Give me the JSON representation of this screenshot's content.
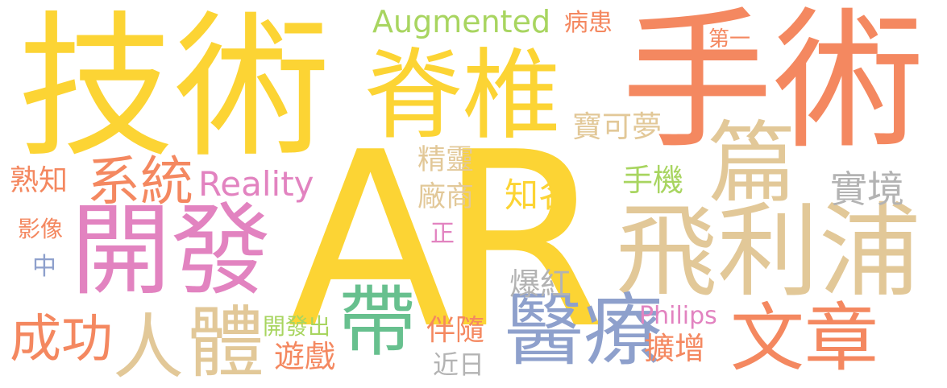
{
  "palette": {
    "yellow": "#fcd434",
    "orange": "#f48860",
    "tan": "#e2c898",
    "pink": "#e283c0",
    "blue": "#8ea0cc",
    "green": "#67c08e",
    "lime": "#a8d560",
    "gray": "#b3b3b3"
  },
  "words": [
    {
      "text": "AR",
      "color": "yellow"
    },
    {
      "text": "手術",
      "color": "orange"
    },
    {
      "text": "技術",
      "color": "yellow"
    },
    {
      "text": "脊椎",
      "color": "yellow"
    },
    {
      "text": "開發",
      "color": "pink"
    },
    {
      "text": "飛利浦",
      "color": "tan"
    },
    {
      "text": "篇",
      "color": "tan"
    },
    {
      "text": "醫療",
      "color": "blue"
    },
    {
      "text": "文章",
      "color": "orange"
    },
    {
      "text": "體",
      "color": "tan"
    },
    {
      "text": "人",
      "color": "tan"
    },
    {
      "text": "帶",
      "color": "green"
    },
    {
      "text": "系統",
      "color": "orange"
    },
    {
      "text": "成功",
      "color": "orange"
    },
    {
      "text": "Augmented",
      "color": "lime"
    },
    {
      "text": "Reality",
      "color": "pink"
    },
    {
      "text": "寶可夢",
      "color": "tan"
    },
    {
      "text": "實境",
      "color": "gray"
    },
    {
      "text": "精靈",
      "color": "tan"
    },
    {
      "text": "廠商",
      "color": "tan"
    },
    {
      "text": "知名",
      "color": "yellow"
    },
    {
      "text": "手機",
      "color": "lime"
    },
    {
      "text": "熟知",
      "color": "orange"
    },
    {
      "text": "影像",
      "color": "orange"
    },
    {
      "text": "中",
      "color": "blue"
    },
    {
      "text": "正",
      "color": "pink"
    },
    {
      "text": "爆紅",
      "color": "gray"
    },
    {
      "text": "開發出",
      "color": "lime"
    },
    {
      "text": "遊戲",
      "color": "orange"
    },
    {
      "text": "伴隨",
      "color": "orange"
    },
    {
      "text": "近日",
      "color": "gray"
    },
    {
      "text": "Philips",
      "color": "pink"
    },
    {
      "text": "擴增",
      "color": "orange"
    },
    {
      "text": "病患",
      "color": "orange"
    },
    {
      "text": "第一",
      "color": "orange"
    }
  ]
}
